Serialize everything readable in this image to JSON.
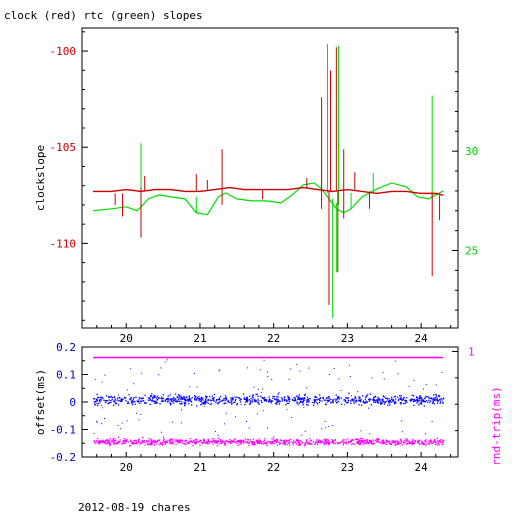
{
  "chart_data": [
    {
      "type": "line",
      "title": "clock (red) rtc (green) slopes",
      "ylabel": "clockslope",
      "xlim": [
        19.4,
        24.5
      ],
      "ylim": [
        -114.4,
        -98.8
      ],
      "y2lim": [
        21.1,
        36.2
      ],
      "x_ticks": [
        20,
        21,
        22,
        23,
        24
      ],
      "y_ticks": [
        -110,
        -105,
        -100
      ],
      "y2_ticks": [
        25,
        30
      ],
      "colors": {
        "clock": "#cc0000",
        "rtc": "#00dd00",
        "tick_left": "#cc0000",
        "tick_right": "#00cc00"
      },
      "series": [
        {
          "name": "clock",
          "axis": "left",
          "x": [
            19.55,
            19.8,
            20.0,
            20.2,
            20.4,
            20.6,
            20.8,
            21.0,
            21.2,
            21.4,
            21.6,
            21.8,
            22.0,
            22.2,
            22.4,
            22.6,
            22.8,
            23.0,
            23.2,
            23.4,
            23.6,
            23.8,
            24.0,
            24.2,
            24.3
          ],
          "y": [
            -107.3,
            -107.3,
            -107.2,
            -107.3,
            -107.2,
            -107.2,
            -107.3,
            -107.3,
            -107.2,
            -107.1,
            -107.2,
            -107.2,
            -107.2,
            -107.2,
            -107.1,
            -107.2,
            -107.3,
            -107.2,
            -107.3,
            -107.4,
            -107.3,
            -107.3,
            -107.4,
            -107.4,
            -107.5
          ],
          "spikes": [
            {
              "x": 19.85,
              "y1": -107.4,
              "y2": -108.0
            },
            {
              "x": 19.95,
              "y1": -107.4,
              "y2": -108.6
            },
            {
              "x": 20.2,
              "y1": -107.1,
              "y2": -109.7
            },
            {
              "x": 20.25,
              "y1": -107.3,
              "y2": -106.5
            },
            {
              "x": 20.95,
              "y1": -107.3,
              "y2": -106.4
            },
            {
              "x": 21.1,
              "y1": -107.2,
              "y2": -106.7
            },
            {
              "x": 21.3,
              "y1": -107.2,
              "y2": -105.1
            },
            {
              "x": 21.3,
              "y1": -107.2,
              "y2": -108.0
            },
            {
              "x": 21.85,
              "y1": -107.2,
              "y2": -107.7
            },
            {
              "x": 22.45,
              "y1": -107.1,
              "y2": -106.6
            },
            {
              "x": 22.65,
              "y1": -107.2,
              "y2": -102.4
            },
            {
              "x": 22.65,
              "y1": -107.2,
              "y2": -108.2
            },
            {
              "x": 22.75,
              "y1": -107.3,
              "y2": -113.2
            },
            {
              "x": 22.77,
              "y1": -107.3,
              "y2": -101.0
            },
            {
              "x": 22.85,
              "y1": -107.3,
              "y2": -99.8
            },
            {
              "x": 22.87,
              "y1": -107.3,
              "y2": -111.5
            },
            {
              "x": 22.95,
              "y1": -107.2,
              "y2": -105.1
            },
            {
              "x": 22.95,
              "y1": -107.2,
              "y2": -108.7
            },
            {
              "x": 23.1,
              "y1": -107.2,
              "y2": -106.3
            },
            {
              "x": 23.3,
              "y1": -107.3,
              "y2": -108.2
            },
            {
              "x": 24.15,
              "y1": -107.4,
              "y2": -111.7
            },
            {
              "x": 24.25,
              "y1": -107.5,
              "y2": -108.8
            }
          ]
        },
        {
          "name": "rtc",
          "axis": "right",
          "x": [
            19.55,
            19.8,
            20.0,
            20.15,
            20.3,
            20.45,
            20.6,
            20.8,
            20.95,
            21.1,
            21.25,
            21.35,
            21.5,
            21.7,
            21.9,
            22.1,
            22.25,
            22.4,
            22.55,
            22.65,
            22.75,
            22.85,
            22.95,
            23.05,
            23.2,
            23.4,
            23.6,
            23.8,
            23.95,
            24.1,
            24.3
          ],
          "y": [
            27.0,
            27.1,
            27.2,
            27.0,
            27.6,
            27.8,
            27.7,
            27.6,
            26.9,
            26.8,
            27.7,
            27.9,
            27.6,
            27.5,
            27.5,
            27.4,
            27.8,
            28.3,
            28.4,
            28.1,
            27.6,
            27.1,
            26.9,
            27.1,
            27.7,
            28.1,
            28.4,
            28.2,
            27.7,
            27.6,
            28.0
          ],
          "spikes": [
            {
              "x": 20.2,
              "y1": 27.1,
              "y2": 30.4
            },
            {
              "x": 20.2,
              "y1": 27.1,
              "y2": 25.7
            },
            {
              "x": 20.95,
              "y1": 26.9,
              "y2": 27.7
            },
            {
              "x": 22.65,
              "y1": 28.2,
              "y2": 29.5
            },
            {
              "x": 22.73,
              "y1": 27.9,
              "y2": 35.4
            },
            {
              "x": 22.8,
              "y1": 27.6,
              "y2": 21.6
            },
            {
              "x": 22.85,
              "y1": 27.4,
              "y2": 23.9
            },
            {
              "x": 22.88,
              "y1": 27.3,
              "y2": 35.3
            },
            {
              "x": 23.05,
              "y1": 27.1,
              "y2": 27.9
            },
            {
              "x": 23.35,
              "y1": 27.9,
              "y2": 28.9
            },
            {
              "x": 24.15,
              "y1": 27.6,
              "y2": 32.8
            }
          ]
        }
      ]
    },
    {
      "type": "scatter",
      "xlabel": "",
      "ylabel": "offset(ms)",
      "y2label": "rnd-trip(ms)",
      "xlim": [
        19.4,
        24.5
      ],
      "ylim": [
        -0.2,
        0.2
      ],
      "x_ticks": [
        20,
        21,
        22,
        23,
        24
      ],
      "y_ticks": [
        -0.2,
        -0.1,
        0,
        0.1,
        0.2
      ],
      "y2_ticks": [
        1
      ],
      "colors": {
        "offset": "#0000ff",
        "rnd_trip": "#ff00ff",
        "tick_left": "#0000cc",
        "tick_right": "#ff00ff"
      },
      "series": [
        {
          "name": "offset",
          "x_range": [
            19.55,
            24.3
          ],
          "center": 0.01,
          "spread": 0.012,
          "outlier_range": [
            -0.12,
            0.16
          ]
        },
        {
          "name": "rnd-trip",
          "x_range": [
            19.55,
            24.3
          ],
          "center": -0.143,
          "spread": 0.008,
          "upper_band": 0.162
        }
      ]
    }
  ],
  "footer": "2012-08-19 chares",
  "tick_labels": {
    "top_x": [
      "20",
      "21",
      "22",
      "23",
      "24"
    ],
    "top_y": [
      "-110",
      "-105",
      "-100"
    ],
    "top_y2": [
      "25",
      "30"
    ],
    "bot_x": [
      "20",
      "21",
      "22",
      "23",
      "24"
    ],
    "bot_y": [
      "-0.2",
      "-0.1",
      "0",
      "0.1",
      "0.2"
    ],
    "bot_y2": [
      "1"
    ]
  }
}
